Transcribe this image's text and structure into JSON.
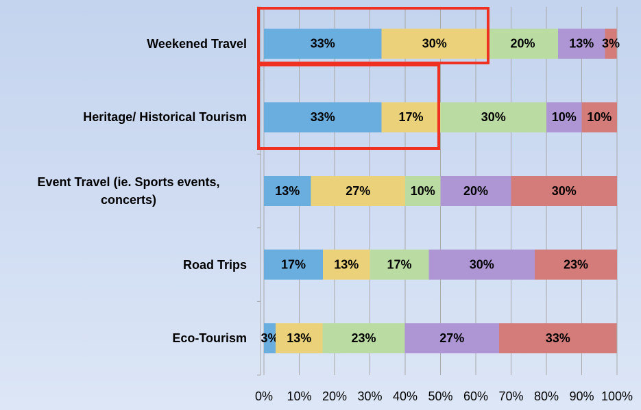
{
  "chart_data": {
    "type": "stacked_bar_horizontal",
    "categories": [
      "Weekened Travel",
      "Heritage/ Historical Tourism",
      "Event Travel (ie. Sports events, concerts)",
      "Road Trips",
      "Eco-Tourism"
    ],
    "series": [
      {
        "color": "#6aaee0",
        "values": [
          33.3,
          33.3,
          13.3,
          16.7,
          3.3
        ],
        "value_labels": [
          "33%",
          "33%",
          "13%",
          "17%",
          "3%"
        ]
      },
      {
        "color": "#ebd27a",
        "values": [
          30,
          16.7,
          26.7,
          13.3,
          13.3
        ],
        "value_labels": [
          "30%",
          "17%",
          "27%",
          "13%",
          "13%"
        ]
      },
      {
        "color": "#badca2",
        "values": [
          20,
          30,
          10,
          16.7,
          23.3
        ],
        "value_labels": [
          "20%",
          "30%",
          "10%",
          "17%",
          "23%"
        ]
      },
      {
        "color": "#ad96d3",
        "values": [
          13.3,
          10,
          20,
          30,
          26.7
        ],
        "value_labels": [
          "13%",
          "10%",
          "20%",
          "30%",
          "27%"
        ]
      },
      {
        "color": "#d47c79",
        "values": [
          3.3,
          10,
          30,
          23.3,
          33.3
        ],
        "value_labels": [
          "3%",
          "10%",
          "30%",
          "23%",
          "33%"
        ]
      }
    ],
    "xlim": [
      0,
      100
    ],
    "xticks": [
      {
        "value": 0,
        "label": "0%"
      },
      {
        "value": 10,
        "label": "10%"
      },
      {
        "value": 20,
        "label": "20%"
      },
      {
        "value": 30,
        "label": "30%"
      },
      {
        "value": 40,
        "label": "40%"
      },
      {
        "value": 50,
        "label": "50%"
      },
      {
        "value": 60,
        "label": "60%"
      },
      {
        "value": 70,
        "label": "70%"
      },
      {
        "value": 80,
        "label": "80%"
      },
      {
        "value": 90,
        "label": "90%"
      },
      {
        "value": 100,
        "label": "100%"
      }
    ],
    "grid": true
  }
}
